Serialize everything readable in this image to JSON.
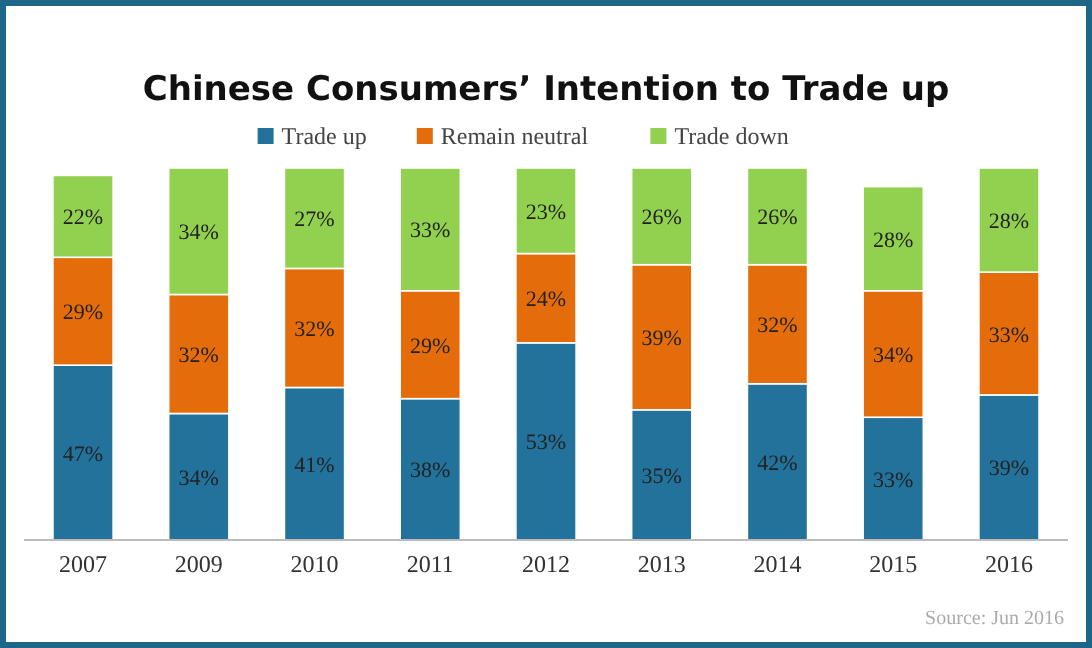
{
  "chart_data": {
    "type": "bar",
    "title": "Chinese Consumers’ Intention to Trade up",
    "stacked": true,
    "legend": "top",
    "categories": [
      "2007",
      "2009",
      "2010",
      "2011",
      "2012",
      "2013",
      "2014",
      "2015",
      "2016"
    ],
    "series": [
      {
        "name": "Trade up",
        "color": "#22729b",
        "values": [
          47,
          34,
          41,
          38,
          53,
          35,
          42,
          33,
          39
        ],
        "value_labels": [
          "47%",
          "34%",
          "41%",
          "38%",
          "53%",
          "35%",
          "42%",
          "33%",
          "39%"
        ]
      },
      {
        "name": "Remain neutral",
        "color": "#e46c0a",
        "values": [
          29,
          32,
          32,
          29,
          24,
          39,
          32,
          34,
          33
        ],
        "value_labels": [
          "29%",
          "32%",
          "32%",
          "29%",
          "24%",
          "39%",
          "32%",
          "34%",
          "33%"
        ]
      },
      {
        "name": "Trade down",
        "color": "#92d050",
        "values": [
          22,
          34,
          27,
          33,
          23,
          26,
          26,
          28,
          28
        ],
        "value_labels": [
          "22%",
          "34%",
          "27%",
          "33%",
          "23%",
          "26%",
          "26%",
          "28%",
          "28%"
        ]
      }
    ],
    "annotations": [
      "Source: Jun 2016"
    ]
  }
}
